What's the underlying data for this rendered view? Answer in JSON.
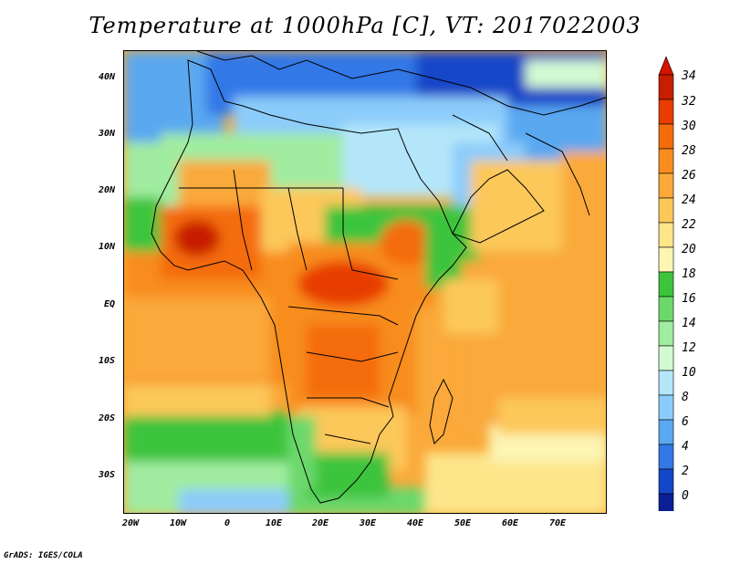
{
  "title": "Temperature at 1000hPa [C], VT: 2017022003",
  "footer": "GrADS: IGES/COLA",
  "map": {
    "lat_labels": [
      "40N",
      "30N",
      "20N",
      "10N",
      "EQ",
      "10S",
      "20S",
      "30S"
    ],
    "lon_labels": [
      "20W",
      "10W",
      "0",
      "10E",
      "20E",
      "30E",
      "40E",
      "50E",
      "60E",
      "70E"
    ]
  },
  "colorbar": {
    "labels": [
      "34",
      "32",
      "30",
      "28",
      "26",
      "24",
      "22",
      "20",
      "18",
      "16",
      "14",
      "12",
      "10",
      "8",
      "6",
      "4",
      "2",
      "0"
    ],
    "colors": [
      "#c81e00",
      "#e83c00",
      "#f46c0a",
      "#f88c1e",
      "#faa93a",
      "#fcc85a",
      "#fde58a",
      "#fcf5b4",
      "#3cc43c",
      "#6cd86c",
      "#a0eca0",
      "#d2fad2",
      "#b4e6fa",
      "#8cccfa",
      "#5aa8f0",
      "#3278e6",
      "#1446c8",
      "#0a1e96",
      "#000064"
    ],
    "top_arrow_color": "#d21400",
    "bottom_arrow_color": "#e6e6fa"
  }
}
